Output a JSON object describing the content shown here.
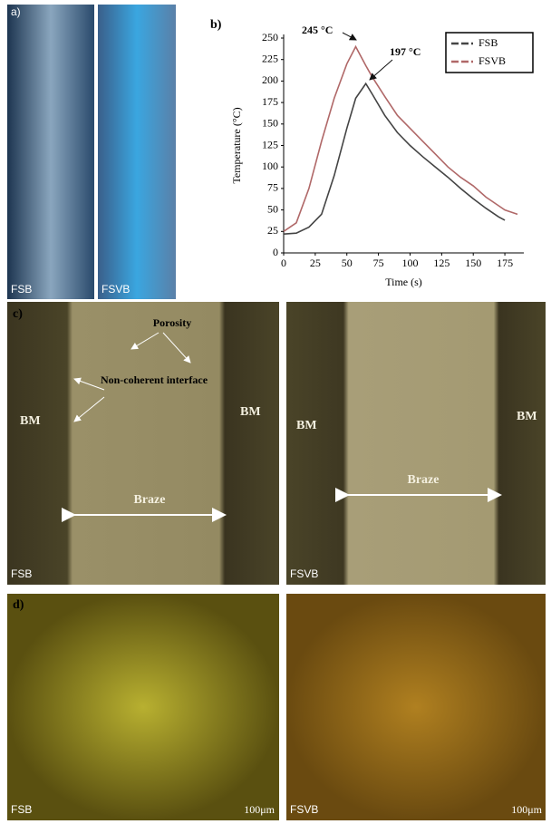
{
  "chart_data": {
    "type": "line",
    "y_label": "Temperature (°C)",
    "x_label": "Time (s)",
    "annotations": [
      "245 °C",
      "197 °C"
    ],
    "x": [
      0,
      10,
      20,
      30,
      40,
      50,
      57,
      65,
      70,
      80,
      90,
      100,
      110,
      120,
      130,
      140,
      150,
      160,
      170,
      175,
      185
    ],
    "series": [
      {
        "name": "FSB",
        "color": "#444444",
        "values": [
          22,
          23,
          30,
          45,
          90,
          145,
          180,
          197,
          185,
          160,
          140,
          125,
          112,
          100,
          88,
          75,
          63,
          52,
          42,
          38,
          null
        ]
      },
      {
        "name": "FSVB",
        "color": "#b06868",
        "values": [
          25,
          35,
          75,
          130,
          180,
          220,
          240,
          218,
          205,
          182,
          160,
          145,
          130,
          115,
          100,
          88,
          78,
          65,
          55,
          50,
          45
        ]
      }
    ],
    "xlim": [
      0,
      190
    ],
    "xticks": [
      0,
      25,
      50,
      75,
      100,
      125,
      150,
      175
    ],
    "ylim": [
      0,
      250
    ],
    "yticks": [
      0,
      25,
      50,
      75,
      100,
      125,
      150,
      175,
      200,
      225,
      250
    ],
    "legend": "upper right",
    "grid": false
  },
  "panels": {
    "a": {
      "label": "a)",
      "left": "FSB",
      "right": "FSVB"
    },
    "b": {
      "label": "b)"
    },
    "c": {
      "label": "c)",
      "porosity": "Porosity",
      "interface": "Non-coherent interface",
      "bm": "BM",
      "braze": "Braze",
      "left": "FSB",
      "right": "FSVB"
    },
    "d": {
      "label": "d)",
      "left": "FSB",
      "right": "FSVB",
      "scale": "100μm"
    }
  }
}
